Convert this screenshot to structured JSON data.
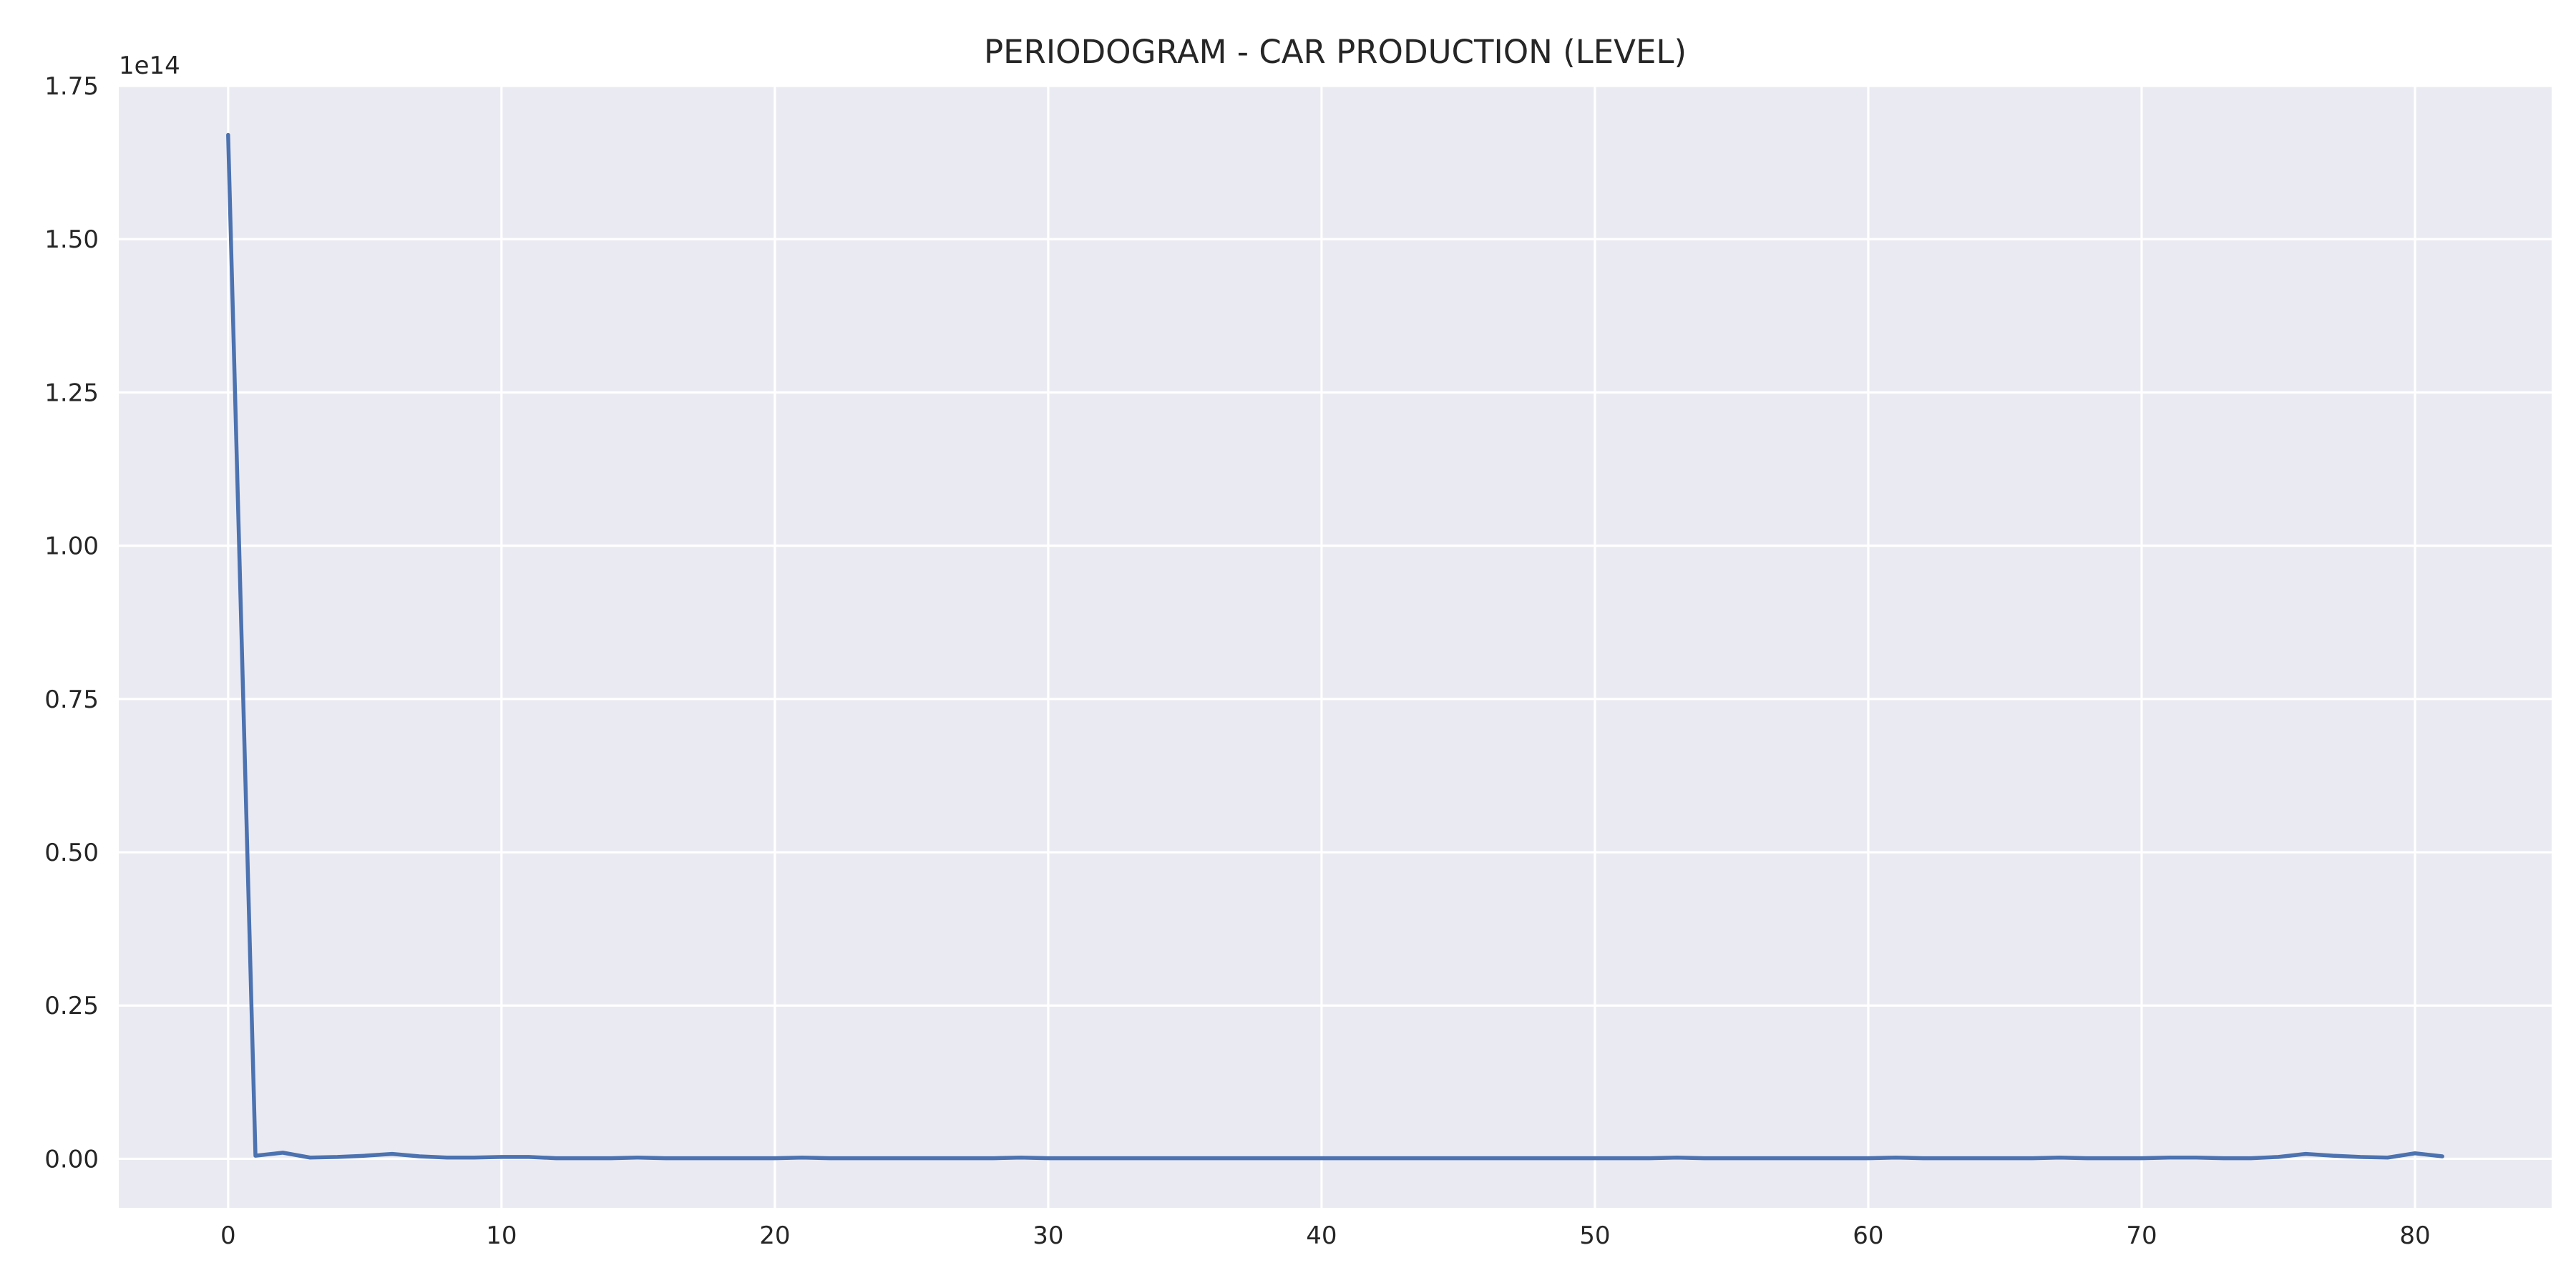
{
  "chart_data": {
    "type": "line",
    "title": "PERIODOGRAM - CAR PRODUCTION (LEVEL)",
    "xlabel": "",
    "ylabel": "",
    "y_offset_label": "1e14",
    "xlim": [
      -4,
      85
    ],
    "ylim": [
      -0.08,
      1.75
    ],
    "y_scale_factor": 100000000000000.0,
    "x_ticks": [
      0,
      10,
      20,
      30,
      40,
      50,
      60,
      70,
      80
    ],
    "x_tick_labels": [
      "0",
      "10",
      "20",
      "30",
      "40",
      "50",
      "60",
      "70",
      "80"
    ],
    "y_ticks": [
      0.0,
      0.25,
      0.5,
      0.75,
      1.0,
      1.25,
      1.5,
      1.75
    ],
    "y_tick_labels": [
      "0.00",
      "0.25",
      "0.50",
      "0.75",
      "1.00",
      "1.25",
      "1.50",
      "1.75"
    ],
    "grid": true,
    "colors": {
      "background": "#eaeaf2",
      "grid": "#ffffff",
      "line": "#4c72b0"
    },
    "series": [
      {
        "x": [
          0,
          1,
          2,
          3,
          4,
          5,
          6,
          7,
          8,
          9,
          10,
          11,
          12,
          13,
          14,
          15,
          16,
          17,
          18,
          19,
          20,
          21,
          22,
          23,
          24,
          25,
          26,
          27,
          28,
          29,
          30,
          31,
          32,
          33,
          34,
          35,
          36,
          37,
          38,
          39,
          40,
          41,
          42,
          43,
          44,
          45,
          46,
          47,
          48,
          49,
          50,
          51,
          52,
          53,
          54,
          55,
          56,
          57,
          58,
          59,
          60,
          61,
          62,
          63,
          64,
          65,
          66,
          67,
          68,
          69,
          70,
          71,
          72,
          73,
          74,
          75,
          76,
          77,
          78,
          79,
          80,
          81
        ],
        "values": [
          1.67,
          0.005,
          0.01,
          0.002,
          0.003,
          0.005,
          0.008,
          0.004,
          0.002,
          0.002,
          0.003,
          0.003,
          0.001,
          0.001,
          0.001,
          0.002,
          0.001,
          0.001,
          0.001,
          0.001,
          0.001,
          0.002,
          0.001,
          0.001,
          0.001,
          0.001,
          0.001,
          0.001,
          0.001,
          0.002,
          0.001,
          0.001,
          0.001,
          0.001,
          0.001,
          0.001,
          0.001,
          0.001,
          0.001,
          0.001,
          0.001,
          0.001,
          0.001,
          0.001,
          0.001,
          0.001,
          0.001,
          0.001,
          0.001,
          0.001,
          0.001,
          0.001,
          0.001,
          0.002,
          0.001,
          0.001,
          0.001,
          0.001,
          0.001,
          0.001,
          0.001,
          0.002,
          0.001,
          0.001,
          0.001,
          0.001,
          0.001,
          0.002,
          0.001,
          0.001,
          0.001,
          0.002,
          0.002,
          0.001,
          0.001,
          0.003,
          0.008,
          0.005,
          0.003,
          0.002,
          0.009,
          0.004
        ]
      }
    ]
  }
}
